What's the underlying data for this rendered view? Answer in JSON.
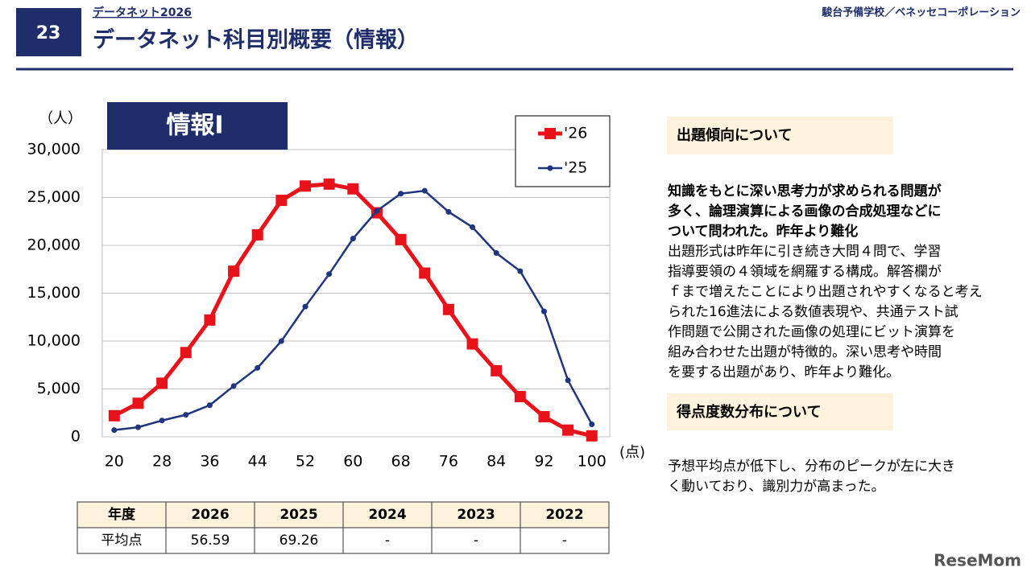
{
  "header": {
    "number": "23",
    "kicker": "データネット2026",
    "title": "データネット科目別概要（情報）",
    "source": "駿台予備学校／ベネッセコーポレーション"
  },
  "chart_data": {
    "type": "line",
    "title": "情報Ⅰ",
    "y_unit": "（人）",
    "x_unit": "(点)",
    "x": [
      20,
      24,
      28,
      32,
      36,
      40,
      44,
      48,
      52,
      56,
      60,
      64,
      68,
      72,
      76,
      80,
      84,
      88,
      92,
      96,
      100
    ],
    "series": [
      {
        "name": "'26",
        "color": "#e8121a",
        "marker": "square",
        "values": [
          2200,
          3500,
          5600,
          8800,
          12200,
          17300,
          21100,
          24700,
          26200,
          26400,
          25900,
          23400,
          20600,
          17100,
          13300,
          9700,
          6900,
          4200,
          2100,
          700,
          100
        ]
      },
      {
        "name": "'25",
        "color": "#1f3580",
        "marker": "circle",
        "values": [
          700,
          1000,
          1700,
          2300,
          3300,
          5300,
          7200,
          10000,
          13600,
          17000,
          20700,
          23600,
          25400,
          25700,
          23500,
          21900,
          19200,
          17300,
          13100,
          5900,
          1300
        ]
      }
    ],
    "xlim": [
      18,
      103
    ],
    "xticks": [
      20,
      28,
      36,
      44,
      52,
      60,
      68,
      76,
      84,
      92,
      100
    ],
    "ylim": [
      0,
      30000
    ],
    "yticks": [
      0,
      {
        "value": 5000,
        "label": "5,000"
      },
      {
        "value": 10000,
        "label": "10,000"
      },
      {
        "value": 15000,
        "label": "15,000"
      },
      {
        "value": 20000,
        "label": "20,000"
      },
      {
        "value": 25000,
        "label": "25,000"
      },
      {
        "value": 30000,
        "label": "30,000"
      }
    ],
    "grid": true,
    "legend": "top-right"
  },
  "table": {
    "header": [
      "年度",
      "2026",
      "2025",
      "2024",
      "2023",
      "2022"
    ],
    "rows": [
      [
        "平均点",
        "56.59",
        "69.26",
        "-",
        "-",
        "-"
      ]
    ]
  },
  "panel": {
    "heading1": "出題傾向について",
    "bold_lines": [
      "知識をもとに深い思考力が求められる問題が",
      "多く、論理演算による画像の合成処理などに",
      "ついて問われた。昨年より難化"
    ],
    "lines": [
      "出題形式は昨年に引き続き大問４問で、学習",
      "指導要領の４領域を網羅する構成。解答欄が",
      "ｆまで増えたことにより出題されやすくなると考え",
      "られた16進法による数値表現や、共通テスト試",
      "作問題で公開された画像の処理にビット演算を",
      "組み合わせた出題が特徴的。深い思考や時間",
      "を要する出題があり、昨年より難化。"
    ],
    "heading2": "得点度数分布について",
    "lines2": [
      "予想平均点が低下し、分布のピークが左に大き",
      "く動いており、識別力が高まった。"
    ]
  },
  "watermark": "ReseMom"
}
